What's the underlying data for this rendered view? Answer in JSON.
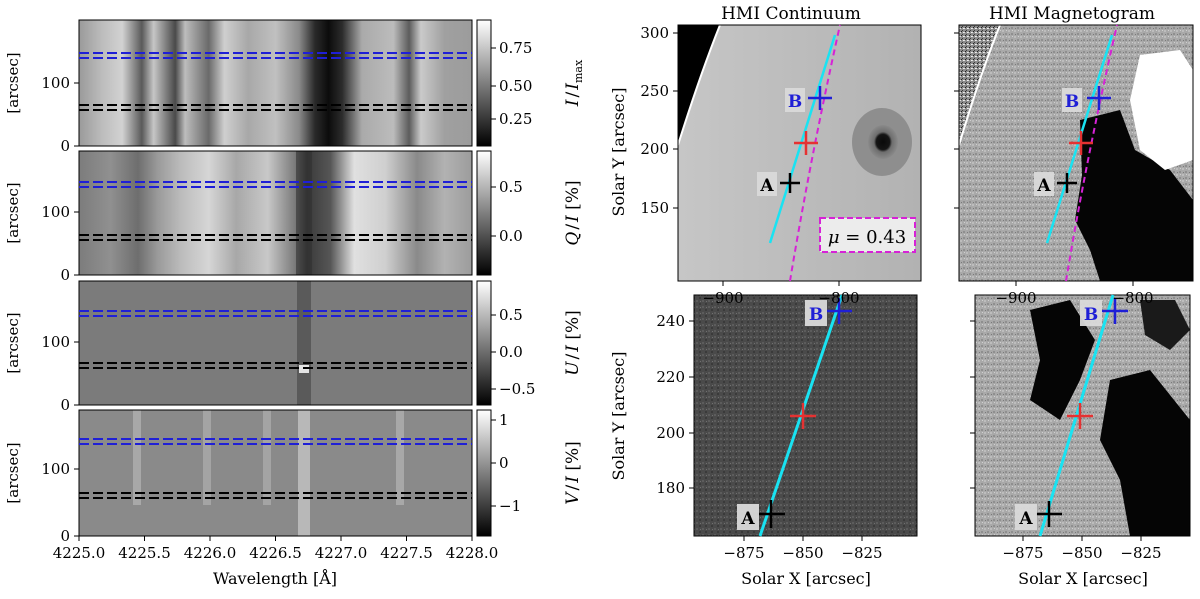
{
  "left_panels": {
    "ylabel": "[arcsec]",
    "xlabel": "Wavelength [Å]",
    "y_ticks": [
      "0",
      "100"
    ],
    "x_ticks": [
      "4225.0",
      "4225.5",
      "4226.0",
      "4226.5",
      "4227.0",
      "4227.5",
      "4228.0"
    ],
    "panels": [
      {
        "id": "I",
        "cbar_label": "I / I_max",
        "cbar_ticks": [
          "0.75",
          "0.50",
          "0.25"
        ]
      },
      {
        "id": "Q",
        "cbar_label": "Q / I [%]",
        "cbar_ticks": [
          "0.5",
          "0.0"
        ]
      },
      {
        "id": "U",
        "cbar_label": "U / I [%]",
        "cbar_ticks": [
          "0.5",
          "0.0",
          "−0.5"
        ]
      },
      {
        "id": "V",
        "cbar_label": "V / I [%]",
        "cbar_ticks": [
          "1",
          "0",
          "−1"
        ]
      }
    ],
    "label_parts": {
      "I": {
        "a": "I",
        "b": "/",
        "c": "I",
        "sub": "max"
      },
      "Q": {
        "a": "Q",
        "b": "/",
        "c": "I",
        "tail": " [%]"
      },
      "U": {
        "a": "U",
        "b": "/",
        "c": "I",
        "tail": " [%]"
      },
      "V": {
        "a": "V",
        "b": "/",
        "c": "I",
        "tail": " [%]"
      }
    }
  },
  "right_panels": {
    "titles": {
      "continuum": "HMI Continuum",
      "magnetogram": "HMI Magnetogram"
    },
    "ylabel": "Solar Y [arcsec]",
    "xlabel": "Solar X [arcsec]",
    "top_y_ticks": [
      "300",
      "250",
      "200",
      "150"
    ],
    "top_x_ticks": [
      "−900",
      "−800"
    ],
    "bottom_y_ticks": [
      "240",
      "220",
      "200",
      "180"
    ],
    "bottom_x_ticks": [
      "−875",
      "−850",
      "−825"
    ],
    "point_labels": {
      "a": "A",
      "b": "B"
    },
    "mu_label": {
      "symbol": "μ",
      "value": " = 0.43"
    }
  },
  "colors": {
    "blue_lines": "#1f1fd6",
    "black_lines": "#000000",
    "slit_line": "#19e3f2",
    "mu_contour": "#d622d6",
    "red_marker": "#e53232",
    "blue_marker": "#1f1fd6"
  }
}
